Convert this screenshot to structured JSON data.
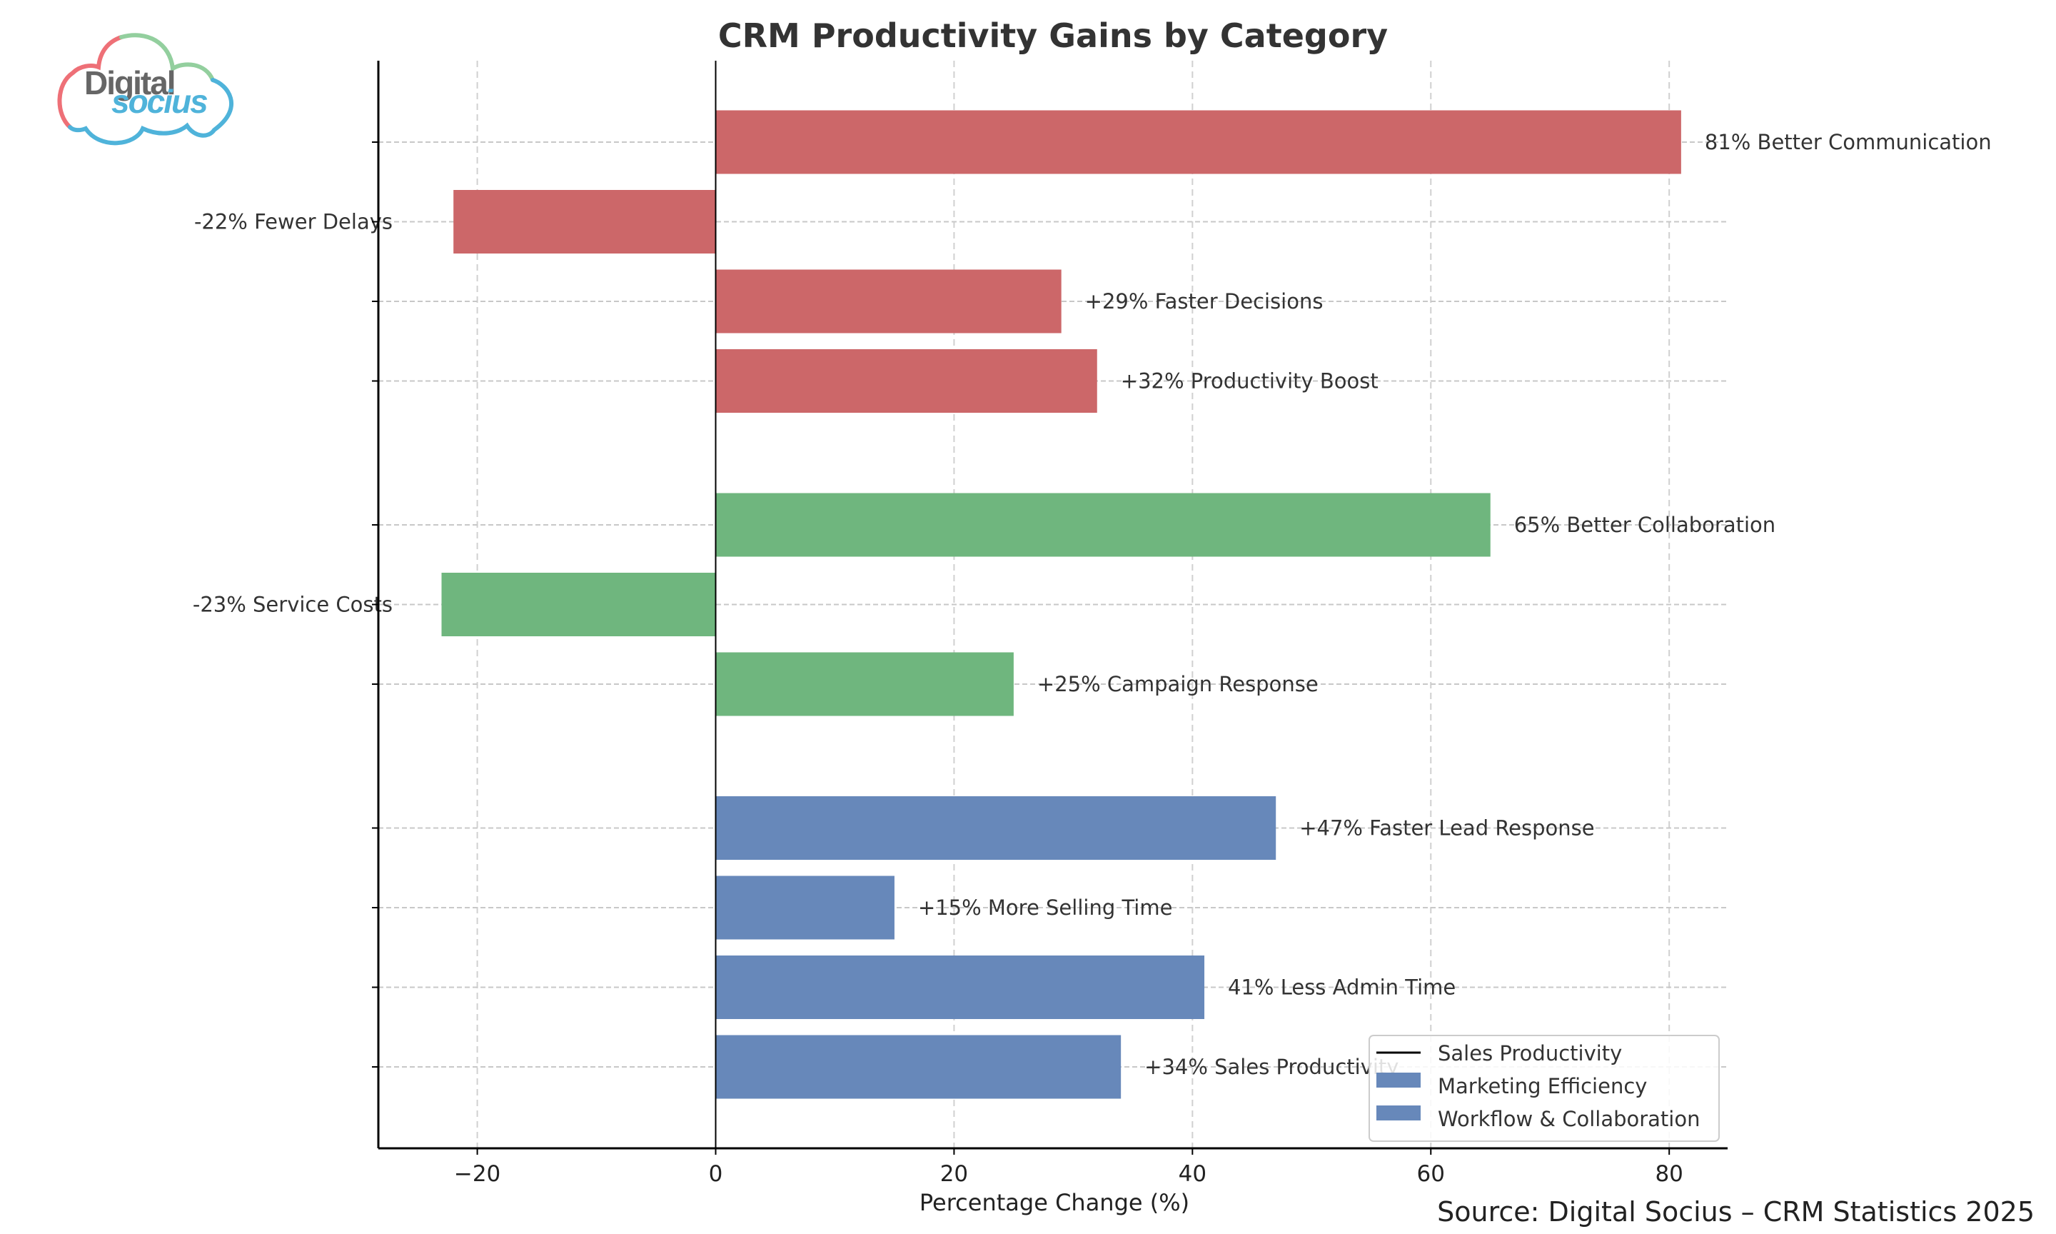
{
  "logo": {
    "line1": "Digital",
    "line2": "socius",
    "colors": {
      "red": "#ee7077",
      "green": "#93cf9e",
      "blue": "#4fb3da",
      "text": "#666666"
    }
  },
  "source_note": "Source: Digital Socius – CRM Statistics 2025",
  "chart_data": {
    "type": "bar",
    "orientation": "horizontal",
    "title": "CRM Productivity Gains by Category",
    "xlabel": "Percentage Change (%)",
    "ylabel": "",
    "xlim": [
      -28.3,
      84.9
    ],
    "xticks": [
      -20,
      0,
      20,
      40,
      60,
      80
    ],
    "xtick_labels": [
      "−20",
      "0",
      "20",
      "40",
      "60",
      "80"
    ],
    "grid": true,
    "legend": {
      "placement": "bottom-right",
      "entries": [
        {
          "label": "Sales Productivity",
          "marker": "line",
          "color": "#000000"
        },
        {
          "label": "Marketing Efficiency",
          "marker": "patch",
          "color": "#6788ba"
        },
        {
          "label": "Workflow & Collaboration",
          "marker": "patch",
          "color": "#6788ba"
        }
      ]
    },
    "colors": {
      "Workflow & Collaboration": "#cc6769",
      "Marketing Efficiency": "#6fb67e",
      "Sales Productivity": "#6788ba"
    },
    "series": [
      {
        "name": "Workflow & Collaboration",
        "group_order": 0,
        "values": [
          {
            "label": "81% Better Communication",
            "value": 81
          },
          {
            "label": "-22% Fewer Delays",
            "value": -22
          },
          {
            "label": "+29% Faster Decisions",
            "value": 29
          },
          {
            "label": "+32% Productivity Boost",
            "value": 32
          }
        ]
      },
      {
        "name": "Marketing Efficiency",
        "group_order": 1,
        "values": [
          {
            "label": "65% Better Collaboration",
            "value": 65
          },
          {
            "label": "-23% Service Costs",
            "value": -23
          },
          {
            "label": "+25% Campaign Response",
            "value": 25
          }
        ]
      },
      {
        "name": "Sales Productivity",
        "group_order": 2,
        "values": [
          {
            "label": "+47% Faster Lead Response",
            "value": 47
          },
          {
            "label": "+15% More Selling Time",
            "value": 15
          },
          {
            "label": "41% Less Admin Time",
            "value": 41
          },
          {
            "label": "+34% Sales Productivity",
            "value": 34
          }
        ]
      }
    ]
  }
}
